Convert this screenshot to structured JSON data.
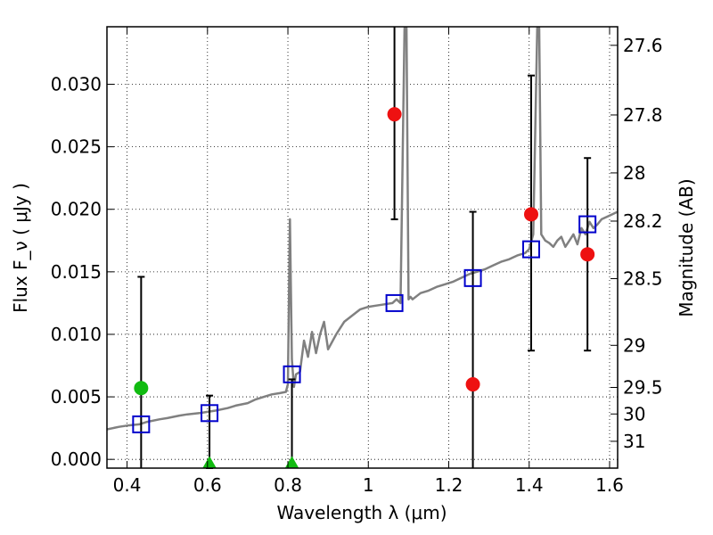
{
  "chart_data": {
    "type": "scatter",
    "xlabel": "Wavelength  λ (μm)",
    "ylabel": "Flux  F_ν  ( μJy )",
    "y2label": "Magnitude (AB)",
    "xlim": [
      0.35,
      1.62
    ],
    "ylim": [
      -0.0007,
      0.0346
    ],
    "grid": true,
    "x_ticks": [
      {
        "value": 0.4,
        "label": "0.4"
      },
      {
        "value": 0.6,
        "label": "0.6"
      },
      {
        "value": 0.8,
        "label": "0.8"
      },
      {
        "value": 1.0,
        "label": "1"
      },
      {
        "value": 1.2,
        "label": "1.2"
      },
      {
        "value": 1.4,
        "label": "1.4"
      },
      {
        "value": 1.6,
        "label": "1.6"
      }
    ],
    "y_ticks": [
      {
        "value": 0.0,
        "label": "0.000"
      },
      {
        "value": 0.005,
        "label": "0.005"
      },
      {
        "value": 0.01,
        "label": "0.010"
      },
      {
        "value": 0.015,
        "label": "0.015"
      },
      {
        "value": 0.02,
        "label": "0.020"
      },
      {
        "value": 0.025,
        "label": "0.025"
      },
      {
        "value": 0.03,
        "label": "0.030"
      }
    ],
    "y2_ticks": [
      {
        "value": 27.6,
        "label": "27.6"
      },
      {
        "value": 27.8,
        "label": "27.8"
      },
      {
        "value": 28.0,
        "label": "28"
      },
      {
        "value": 28.2,
        "label": "28.2"
      },
      {
        "value": 28.5,
        "label": "28.5"
      },
      {
        "value": 29.0,
        "label": "29"
      },
      {
        "value": 29.5,
        "label": "29.5"
      },
      {
        "value": 30.0,
        "label": "30"
      },
      {
        "value": 31.0,
        "label": "31"
      }
    ],
    "series": [
      {
        "kind": "line",
        "color": "#808080",
        "x": [
          0.35,
          0.38,
          0.4,
          0.43,
          0.45,
          0.48,
          0.5,
          0.53,
          0.55,
          0.58,
          0.6,
          0.62,
          0.65,
          0.67,
          0.7,
          0.72,
          0.74,
          0.76,
          0.78,
          0.795,
          0.8,
          0.805,
          0.81,
          0.815,
          0.82,
          0.83,
          0.84,
          0.85,
          0.86,
          0.87,
          0.88,
          0.89,
          0.9,
          0.92,
          0.94,
          0.96,
          0.98,
          1.0,
          1.02,
          1.04,
          1.06,
          1.07,
          1.08,
          1.09,
          1.095,
          1.1,
          1.105,
          1.11,
          1.13,
          1.15,
          1.17,
          1.19,
          1.21,
          1.23,
          1.25,
          1.27,
          1.29,
          1.31,
          1.33,
          1.35,
          1.37,
          1.39,
          1.4,
          1.41,
          1.42,
          1.425,
          1.43,
          1.44,
          1.45,
          1.46,
          1.47,
          1.48,
          1.49,
          1.5,
          1.51,
          1.52,
          1.53,
          1.54,
          1.55,
          1.56,
          1.57,
          1.58,
          1.6,
          1.62
        ],
        "y": [
          0.0024,
          0.0026,
          0.0027,
          0.0028,
          0.003,
          0.0032,
          0.0033,
          0.0035,
          0.0036,
          0.0037,
          0.0038,
          0.0039,
          0.0041,
          0.0043,
          0.0045,
          0.0048,
          0.005,
          0.0052,
          0.0053,
          0.0054,
          0.006,
          0.0192,
          0.008,
          0.0058,
          0.0068,
          0.007,
          0.0095,
          0.0082,
          0.0102,
          0.0085,
          0.01,
          0.011,
          0.0088,
          0.01,
          0.011,
          0.0115,
          0.012,
          0.0122,
          0.0123,
          0.0124,
          0.0125,
          0.0128,
          0.0125,
          0.0345,
          0.0345,
          0.0128,
          0.013,
          0.0128,
          0.0133,
          0.0135,
          0.0138,
          0.014,
          0.0142,
          0.0145,
          0.0148,
          0.015,
          0.0152,
          0.0155,
          0.0158,
          0.016,
          0.0163,
          0.0165,
          0.0168,
          0.018,
          0.0345,
          0.0345,
          0.018,
          0.0175,
          0.0173,
          0.017,
          0.0175,
          0.0178,
          0.017,
          0.0175,
          0.018,
          0.0172,
          0.0185,
          0.018,
          0.019,
          0.0185,
          0.0188,
          0.0192,
          0.0195,
          0.0198
        ]
      },
      {
        "kind": "markers",
        "marker": "square-open",
        "color": "#0000cc",
        "x": [
          0.435,
          0.605,
          0.81,
          1.065,
          1.26,
          1.405,
          1.545
        ],
        "y": [
          0.0028,
          0.0037,
          0.0068,
          0.0125,
          0.0145,
          0.0168,
          0.0188
        ]
      },
      {
        "kind": "markers",
        "marker": "circle",
        "color": "#ee1111",
        "x": [
          1.065,
          1.26,
          1.405,
          1.545
        ],
        "y": [
          0.0276,
          0.006,
          0.0196,
          0.0164
        ]
      },
      {
        "kind": "markers",
        "marker": "circle",
        "color": "#11bb11",
        "x": [
          0.435
        ],
        "y": [
          0.0057
        ]
      },
      {
        "kind": "markers",
        "marker": "triangle-up",
        "color": "#11bb11",
        "x": [
          0.605,
          0.81
        ],
        "y": [
          -0.0003,
          -0.0003
        ]
      },
      {
        "kind": "errorbars",
        "color": "#000000",
        "x": [
          0.435,
          0.605,
          0.81,
          1.065,
          1.26,
          1.405,
          1.545
        ],
        "ylow": [
          -0.0007,
          -0.0007,
          -0.0007,
          0.0192,
          -0.0007,
          0.0087,
          0.0087
        ],
        "yhigh": [
          0.0146,
          0.0051,
          0.0064,
          0.0346,
          0.0198,
          0.0307,
          0.0241
        ],
        "cap_top": [
          true,
          true,
          true,
          false,
          true,
          true,
          true
        ],
        "cap_bottom": [
          false,
          true,
          false,
          true,
          false,
          true,
          true
        ]
      }
    ]
  }
}
